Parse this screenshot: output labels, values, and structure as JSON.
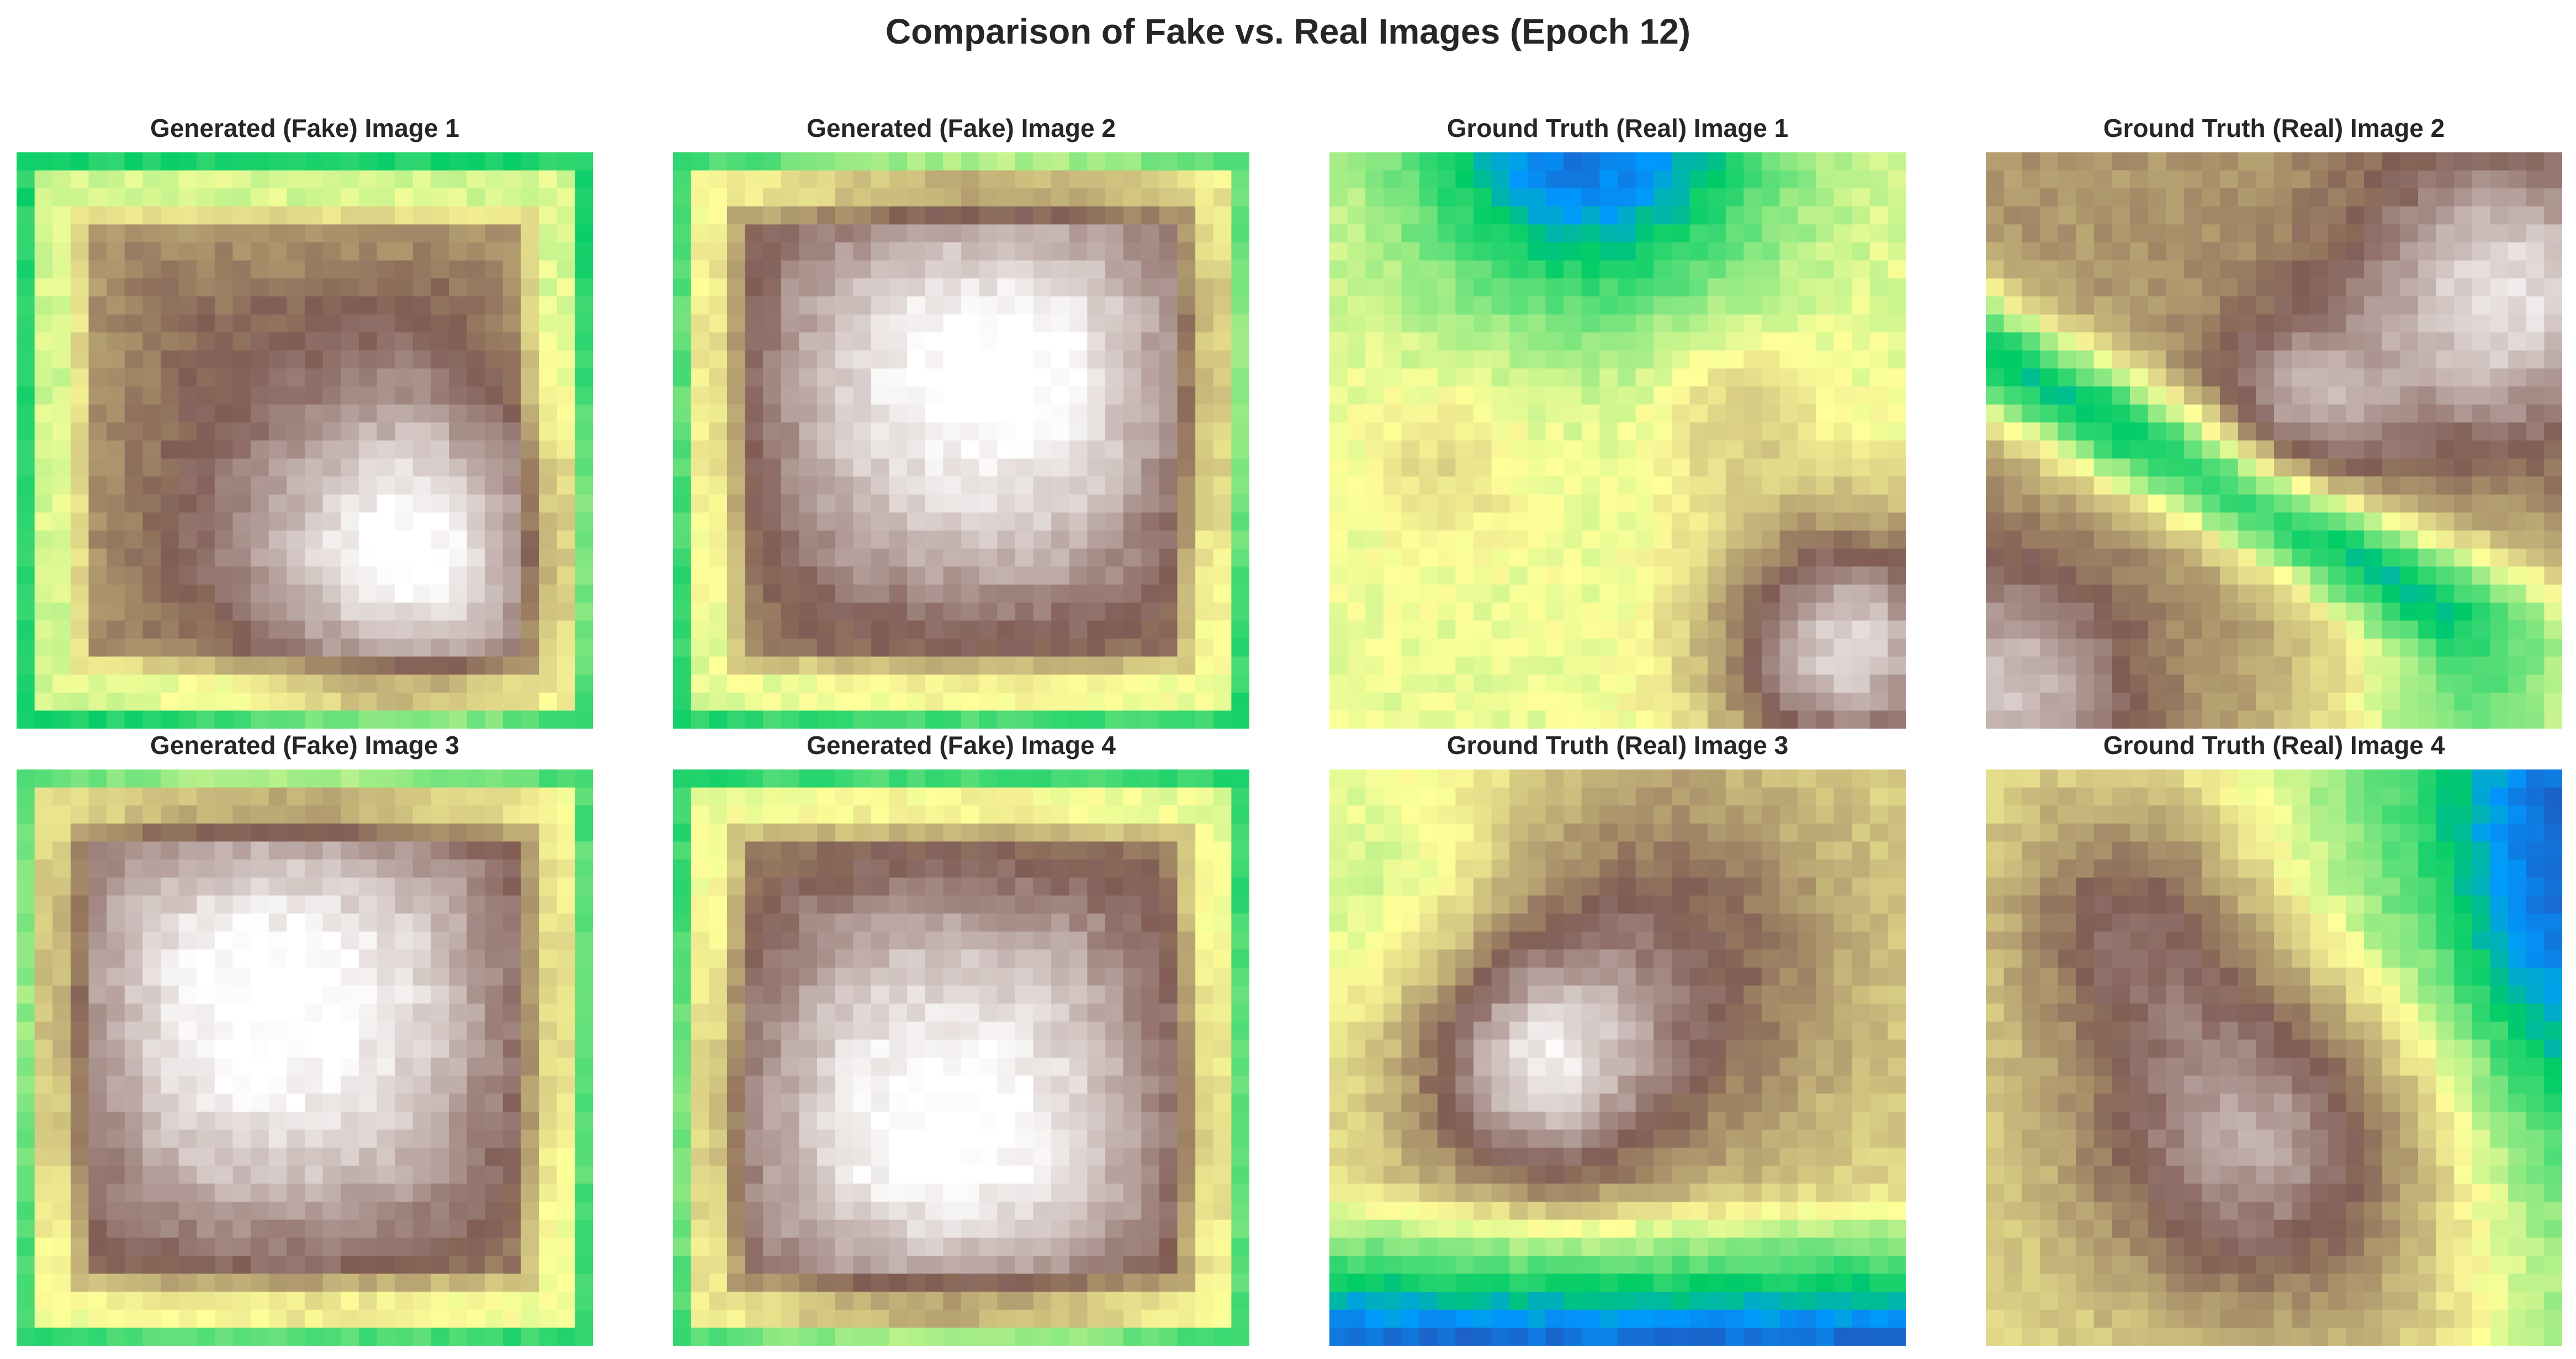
{
  "figure": {
    "title": "Comparison of Fake vs. Real Images (Epoch 12)"
  },
  "chart_data": [
    {
      "type": "heatmap",
      "title": "Generated (Fake) Image 1",
      "colormap": "terrain",
      "grid_size": 32,
      "pattern": "frame",
      "blob": [
        0.68,
        0.7,
        0.2
      ],
      "seed": 11
    },
    {
      "type": "heatmap",
      "title": "Generated (Fake) Image 2",
      "colormap": "terrain",
      "grid_size": 32,
      "pattern": "frame",
      "blob": [
        0.55,
        0.38,
        0.3
      ],
      "seed": 22
    },
    {
      "type": "heatmap",
      "title": "Ground Truth (Real) Image 1",
      "colormap": "terrain",
      "grid_size": 32,
      "pattern": "real1",
      "seed": 33
    },
    {
      "type": "heatmap",
      "title": "Ground Truth (Real) Image 2",
      "colormap": "terrain",
      "grid_size": 32,
      "pattern": "real2",
      "seed": 44
    },
    {
      "type": "heatmap",
      "title": "Generated (Fake) Image 3",
      "colormap": "terrain",
      "grid_size": 32,
      "pattern": "frame",
      "blob": [
        0.45,
        0.4,
        0.32
      ],
      "seed": 55
    },
    {
      "type": "heatmap",
      "title": "Generated (Fake) Image 4",
      "colormap": "terrain",
      "grid_size": 32,
      "pattern": "frame",
      "blob": [
        0.48,
        0.62,
        0.3
      ],
      "seed": 66
    },
    {
      "type": "heatmap",
      "title": "Ground Truth (Real) Image 3",
      "colormap": "terrain",
      "grid_size": 32,
      "pattern": "real3",
      "seed": 77
    },
    {
      "type": "heatmap",
      "title": "Ground Truth (Real) Image 4",
      "colormap": "terrain",
      "grid_size": 32,
      "pattern": "real4",
      "seed": 88
    }
  ]
}
